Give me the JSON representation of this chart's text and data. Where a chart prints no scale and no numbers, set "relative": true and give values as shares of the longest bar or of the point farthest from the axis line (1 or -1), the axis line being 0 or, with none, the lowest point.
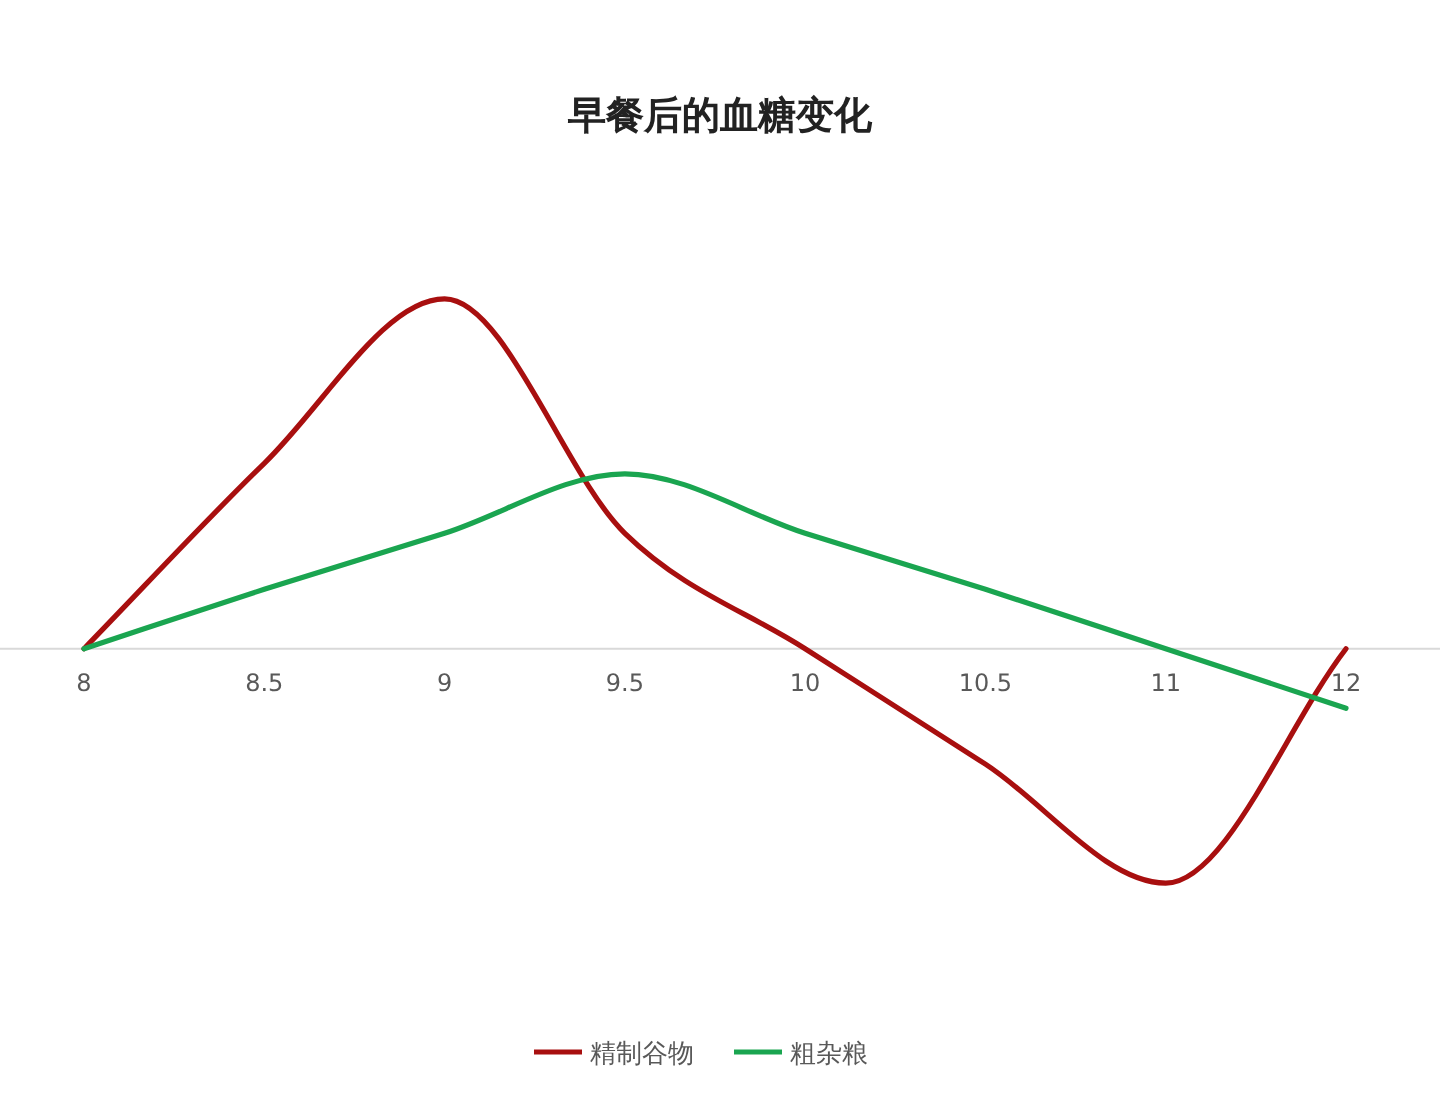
{
  "chart_data": {
    "type": "line",
    "title": "早餐后的血糖变化",
    "relative": true,
    "categories": [
      "8",
      "8.5",
      "9",
      "9.5",
      "10",
      "10.5",
      "11",
      "12"
    ],
    "series": [
      {
        "name": "精制谷物",
        "color": "#a80f0f",
        "values": [
          0,
          0.53,
          1,
          0.33,
          0,
          -0.33,
          -0.67,
          0
        ]
      },
      {
        "name": "粗杂粮",
        "color": "#1aa550",
        "values": [
          0,
          0.17,
          0.33,
          0.5,
          0.33,
          0.17,
          0,
          -0.17
        ]
      }
    ],
    "legend": "bottom",
    "marker": "none",
    "line_style": "solid"
  }
}
